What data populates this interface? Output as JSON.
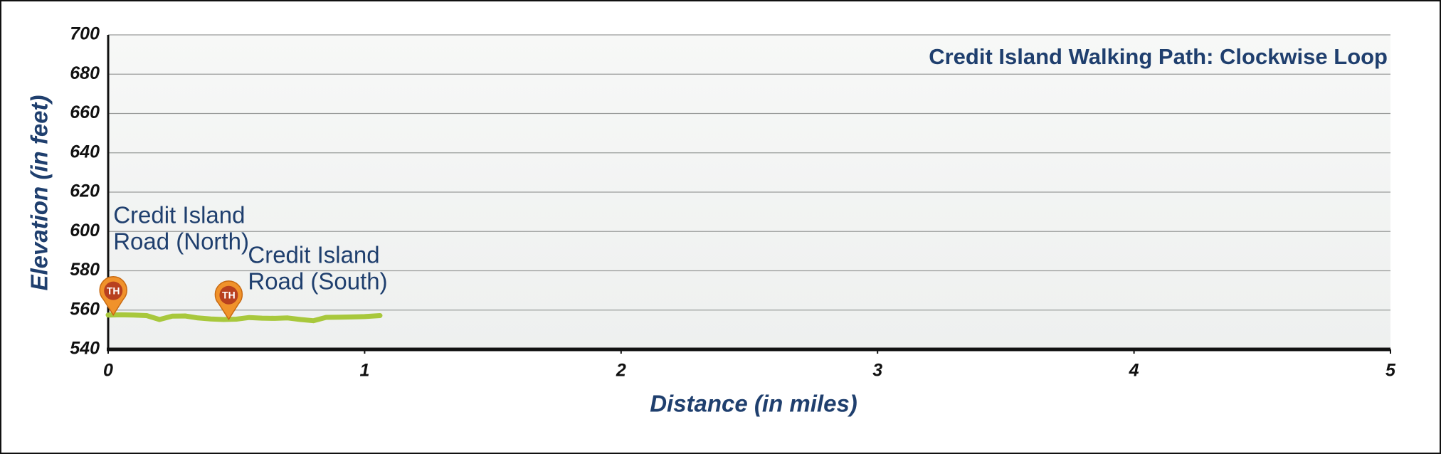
{
  "chart_data": {
    "type": "line",
    "title": "Credit Island Walking Path: Clockwise Loop",
    "x_label": "Distance (in miles)",
    "y_label": "Elevation (in feet)",
    "x": [
      0,
      0.05,
      0.1,
      0.15,
      0.2,
      0.25,
      0.3,
      0.35,
      0.4,
      0.45,
      0.5,
      0.55,
      0.6,
      0.65,
      0.7,
      0.75,
      0.8,
      0.85,
      0.9,
      0.95,
      1.0,
      1.06
    ],
    "series": [
      {
        "name": "Elevation",
        "color": "#a8c83c",
        "values": [
          557.5,
          557.6,
          557.5,
          557.2,
          555.2,
          556.9,
          557.0,
          556.0,
          555.5,
          555.2,
          555.4,
          556.2,
          555.9,
          555.8,
          556.0,
          555.2,
          554.6,
          556.3,
          556.4,
          556.5,
          556.7,
          557.2
        ]
      }
    ],
    "trailheads": [
      {
        "icon": "TH",
        "lines": [
          "Credit Island",
          "Road (North)"
        ],
        "x": 0.02,
        "y": 557.5
      },
      {
        "icon": "TH",
        "lines": [
          "Credit Island",
          "Road (South)"
        ],
        "x": 0.47,
        "y": 555.3
      }
    ],
    "xlim": [
      0,
      5
    ],
    "xticks": [
      0,
      1,
      2,
      3,
      4,
      5
    ],
    "ylim": [
      540,
      700
    ],
    "yticks": [
      540,
      560,
      580,
      600,
      620,
      640,
      660,
      680,
      700
    ],
    "grid": true
  }
}
